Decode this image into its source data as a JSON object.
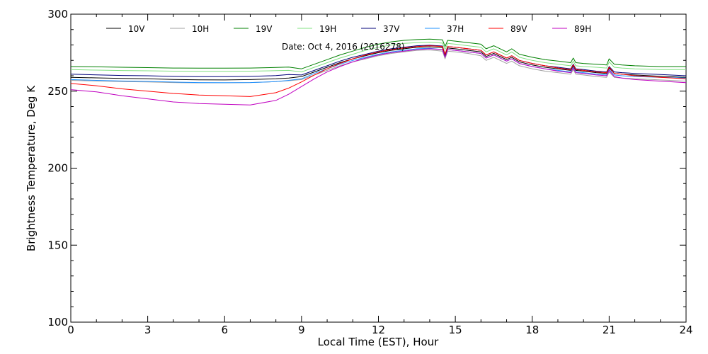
{
  "chart_data": {
    "type": "line",
    "xlabel": "Local Time (EST), Hour",
    "ylabel": "Brightness Temperature, Deg K",
    "annotation": "Date: Oct  4, 2016 (2016278)",
    "xlim": [
      0,
      24
    ],
    "ylim": [
      100,
      300
    ],
    "xticks": [
      0,
      3,
      6,
      9,
      12,
      15,
      18,
      21,
      24
    ],
    "xtick_labels": [
      "0",
      "3",
      "6",
      "9",
      "12",
      "15",
      "18",
      "21",
      "24"
    ],
    "yticks": [
      100,
      150,
      200,
      250,
      300
    ],
    "ytick_labels": [
      "100",
      "150",
      "200",
      "250",
      "300"
    ],
    "grid": false,
    "legend_position": "top",
    "x": [
      0,
      1,
      2,
      3,
      4,
      5,
      6,
      7,
      8,
      8.5,
      9,
      9.5,
      10,
      10.5,
      11,
      11.5,
      12,
      12.5,
      13,
      13.5,
      14,
      14.5,
      14.6,
      14.7,
      15,
      15.5,
      16,
      16.2,
      16.5,
      17,
      17.2,
      17.5,
      18,
      18.5,
      19,
      19.5,
      19.6,
      19.7,
      20,
      20.5,
      20.9,
      21,
      21.2,
      21.5,
      22,
      23,
      24
    ],
    "series": [
      {
        "name": "10V",
        "color": "#000000",
        "values": [
          259,
          258.6,
          258.3,
          258,
          257.6,
          257.4,
          257.3,
          257.5,
          258,
          258.5,
          259.5,
          262.5,
          265.5,
          268.5,
          271,
          273,
          275,
          276.5,
          277.5,
          278.5,
          278.8,
          278.3,
          273,
          278,
          277.5,
          276.5,
          275.5,
          272.5,
          274.5,
          270.5,
          272,
          269,
          267,
          265.5,
          264.5,
          263.5,
          266.5,
          263.5,
          263,
          262,
          261.5,
          265,
          261.5,
          261,
          260.5,
          259.7,
          259
        ]
      },
      {
        "name": "10H",
        "color": "#a0a0a0",
        "values": [
          257,
          256.6,
          256.2,
          256,
          255.6,
          255.4,
          255.4,
          255.6,
          256.2,
          256.8,
          257.5,
          260.5,
          263.5,
          266.5,
          269,
          271,
          273,
          274.5,
          275.5,
          276.5,
          276.8,
          276,
          271,
          276,
          275.5,
          274.5,
          273,
          270,
          272,
          268,
          269.5,
          266.5,
          264.5,
          263,
          262,
          261,
          264,
          261,
          260.5,
          259.5,
          259,
          262.5,
          259,
          258.5,
          258,
          257.3,
          256.5
        ]
      },
      {
        "name": "19V",
        "color": "#008000",
        "values": [
          266,
          265.8,
          265.5,
          265.3,
          265,
          264.9,
          264.9,
          265,
          265.4,
          265.6,
          264.5,
          267.5,
          270.5,
          273.5,
          276,
          278.5,
          280.5,
          282,
          283,
          283.5,
          283.8,
          283.3,
          279,
          283,
          282.5,
          281.5,
          280.5,
          277.5,
          279.5,
          275.5,
          277.5,
          274,
          272,
          270.5,
          269.5,
          268.5,
          271.5,
          268.5,
          268,
          267.5,
          267,
          271,
          267.5,
          267,
          266.5,
          266,
          266
        ]
      },
      {
        "name": "19H",
        "color": "#80e080",
        "values": [
          264,
          263.7,
          263.4,
          263.2,
          263,
          262.9,
          262.9,
          263,
          263.3,
          263.5,
          262.5,
          265.5,
          268.5,
          271.5,
          274,
          276.5,
          278.5,
          280,
          281,
          281.5,
          281.8,
          281.2,
          277,
          281,
          280.5,
          279.5,
          278.5,
          275.5,
          277.5,
          273.5,
          275.5,
          272,
          270,
          268.5,
          267.5,
          266.5,
          269.5,
          266.5,
          266,
          265.5,
          265,
          269,
          265.5,
          265,
          264.5,
          264,
          264
        ]
      },
      {
        "name": "37V",
        "color": "#00007a",
        "values": [
          261,
          260.6,
          260.2,
          260,
          259.6,
          259.4,
          259.4,
          259.6,
          260.1,
          260.8,
          260.5,
          263.5,
          266.5,
          269.5,
          272,
          274,
          276,
          277.5,
          278.5,
          279.5,
          279.8,
          279.3,
          274,
          279,
          278.5,
          277.5,
          276.5,
          273.5,
          275.5,
          271.5,
          273,
          270,
          268,
          266.5,
          265.5,
          264.5,
          267.5,
          264.5,
          264,
          263,
          262.5,
          266,
          262.5,
          262,
          261.5,
          260.8,
          260
        ]
      },
      {
        "name": "37H",
        "color": "#1e90ff",
        "values": [
          257.5,
          257,
          256.6,
          256.3,
          255.9,
          255.6,
          255.5,
          255.6,
          256.2,
          257,
          258,
          261.5,
          264.5,
          267.5,
          270,
          272,
          274,
          275.5,
          276.5,
          277.5,
          277.8,
          277,
          272,
          277,
          276.5,
          275.5,
          274.5,
          271.5,
          273.5,
          269.5,
          271,
          268,
          266,
          264.5,
          263.5,
          262.5,
          265.5,
          262.5,
          262,
          261,
          260.5,
          264,
          260.5,
          260,
          259.5,
          259,
          258.5
        ]
      },
      {
        "name": "89V",
        "color": "#ff0000",
        "values": [
          255,
          253.5,
          251.5,
          250,
          248.5,
          247.5,
          247,
          246.5,
          249,
          252,
          256,
          260.5,
          264.5,
          268,
          271,
          273.5,
          275.5,
          277,
          278,
          279,
          279.5,
          279,
          274,
          279,
          278.5,
          277.5,
          276.5,
          273.5,
          275.5,
          271.5,
          273,
          270,
          268,
          266.5,
          265,
          264,
          267,
          264,
          263.5,
          262.5,
          262,
          265.5,
          261.5,
          261,
          260,
          259,
          258
        ]
      },
      {
        "name": "89H",
        "color": "#c000c0",
        "values": [
          251,
          249.5,
          247,
          245,
          243,
          242,
          241.5,
          241,
          244,
          248,
          253,
          258,
          262.5,
          266,
          269,
          271.5,
          273.5,
          275,
          276,
          277,
          277.5,
          277,
          272,
          277,
          276.5,
          275.5,
          274.5,
          271.5,
          273.5,
          269.5,
          271,
          268,
          266,
          264.5,
          263,
          262,
          265,
          262,
          261.5,
          260.5,
          260,
          263.5,
          259.5,
          258.5,
          257.5,
          256.5,
          255.5
        ]
      }
    ]
  }
}
